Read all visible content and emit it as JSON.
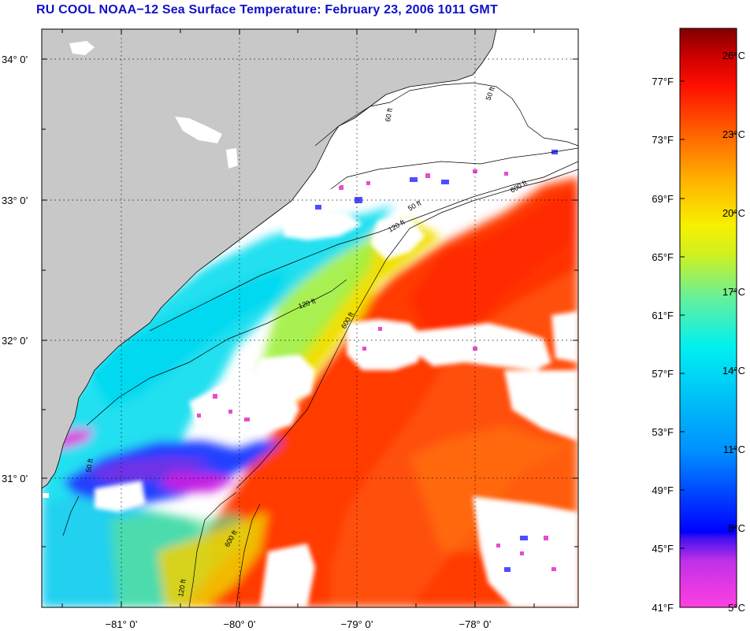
{
  "title": "RU COOL  NOAA−12  Sea Surface Temperature:  February 23, 2006 1011 GMT",
  "map": {
    "lat_labels": [
      "34° 0’",
      "33° 0’",
      "32° 0’",
      "31° 0’"
    ],
    "lon_labels": [
      "−81° 0’",
      "−80° 0’",
      "−79° 0’",
      "−78° 0’"
    ],
    "contour_labels": [
      "50 ft",
      "60 ft",
      "120 ft",
      "600 ft",
      "50 ft",
      "120 ft",
      "600 ft",
      "50 ft",
      "120 ft",
      "600 ft"
    ],
    "colors": {
      "land": "#c8c8c8",
      "cloud": "#ffffff",
      "frame": "#000000"
    }
  },
  "colorbar": {
    "fahrenheit_labels": [
      "77°F",
      "73°F",
      "69°F",
      "65°F",
      "61°F",
      "57°F",
      "53°F",
      "49°F",
      "45°F",
      "41°F"
    ],
    "celsius_labels": [
      "26°C",
      "23°C",
      "20°C",
      "17°C",
      "14°C",
      "11°C",
      "8°C",
      "5°C"
    ],
    "colors": [
      "#ff40e0",
      "#a020f0",
      "#0000ff",
      "#00a0ff",
      "#00e8f0",
      "#80f080",
      "#f0f000",
      "#ffa000",
      "#ff2000",
      "#c00000",
      "#800000"
    ]
  }
}
